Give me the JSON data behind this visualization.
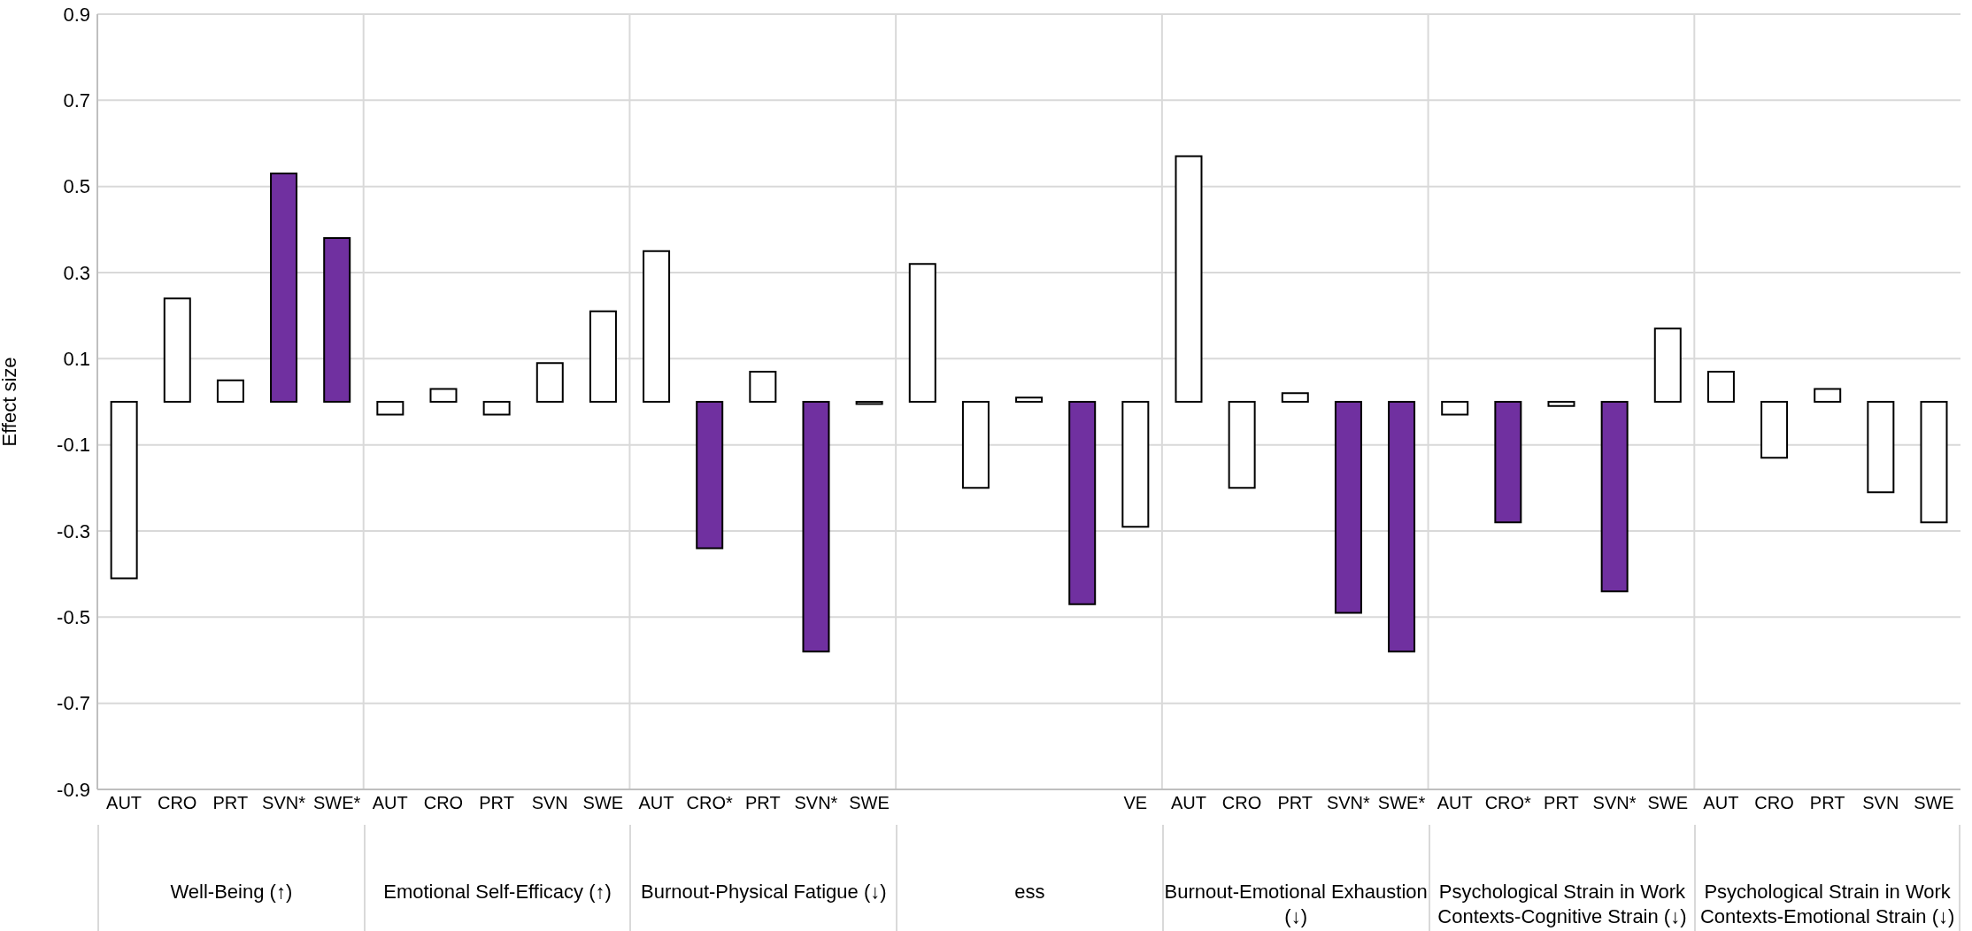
{
  "chart_data": {
    "type": "bar",
    "ylabel": "Effect size",
    "categories": [
      "AUT",
      "CRO",
      "PRT",
      "SVN*",
      "SWE*",
      "AUT",
      "CRO",
      "PRT",
      "SVN",
      "SWE",
      "AUT",
      "CRO*",
      "PRT",
      "SVN*",
      "SWE",
      null,
      null,
      null,
      null,
      "VE",
      "AUT",
      "CRO",
      "PRT",
      "SVN*",
      "SWE*",
      "AUT",
      "CRO*",
      "PRT",
      "SVN*",
      "SWE",
      "AUT",
      "CRO",
      "PRT",
      "SVN",
      "SWE"
    ],
    "values": [
      -0.41,
      0.24,
      0.05,
      0.53,
      0.38,
      -0.03,
      0.03,
      -0.03,
      0.09,
      0.21,
      0.35,
      -0.34,
      0.07,
      -0.58,
      -0.005,
      0.32,
      -0.2,
      0.01,
      -0.47,
      -0.29,
      0.57,
      -0.2,
      0.02,
      -0.49,
      -0.58,
      -0.03,
      -0.28,
      -0.01,
      -0.44,
      0.17,
      0.07,
      -0.13,
      0.03,
      -0.21,
      -0.28
    ],
    "colors": [
      "#ffffff",
      "#ffffff",
      "#ffffff",
      "#7030a0",
      "#7030a0",
      "#ffffff",
      "#ffffff",
      "#ffffff",
      "#ffffff",
      "#ffffff",
      "#ffffff",
      "#7030a0",
      "#ffffff",
      "#7030a0",
      "#ffffff",
      "#ffffff",
      "#ffffff",
      "#ffffff",
      "#7030a0",
      "#ffffff",
      "#ffffff",
      "#ffffff",
      "#ffffff",
      "#7030a0",
      "#7030a0",
      "#ffffff",
      "#7030a0",
      "#ffffff",
      "#7030a0",
      "#ffffff",
      "#ffffff",
      "#ffffff",
      "#ffffff",
      "#ffffff",
      "#ffffff"
    ],
    "annotations": [
      "Well-Being (↑)",
      "Emotional Self-Efficacy (↑)",
      "Burnout-Physical Fatigue (↓)",
      "ess",
      "Burnout-Emotional Exhaustion (↓)",
      "Psychological Strain in Work Contexts-Cognitive Strain (↓)",
      "Psychological Strain in Work Contexts-Emotional Strain (↓)"
    ],
    "ylim": [
      -0.9,
      0.9
    ],
    "yticks": [
      -0.9,
      -0.7,
      -0.5,
      -0.3,
      -0.1,
      0.1,
      0.3,
      0.5,
      0.7,
      0.9
    ],
    "grid": true
  }
}
